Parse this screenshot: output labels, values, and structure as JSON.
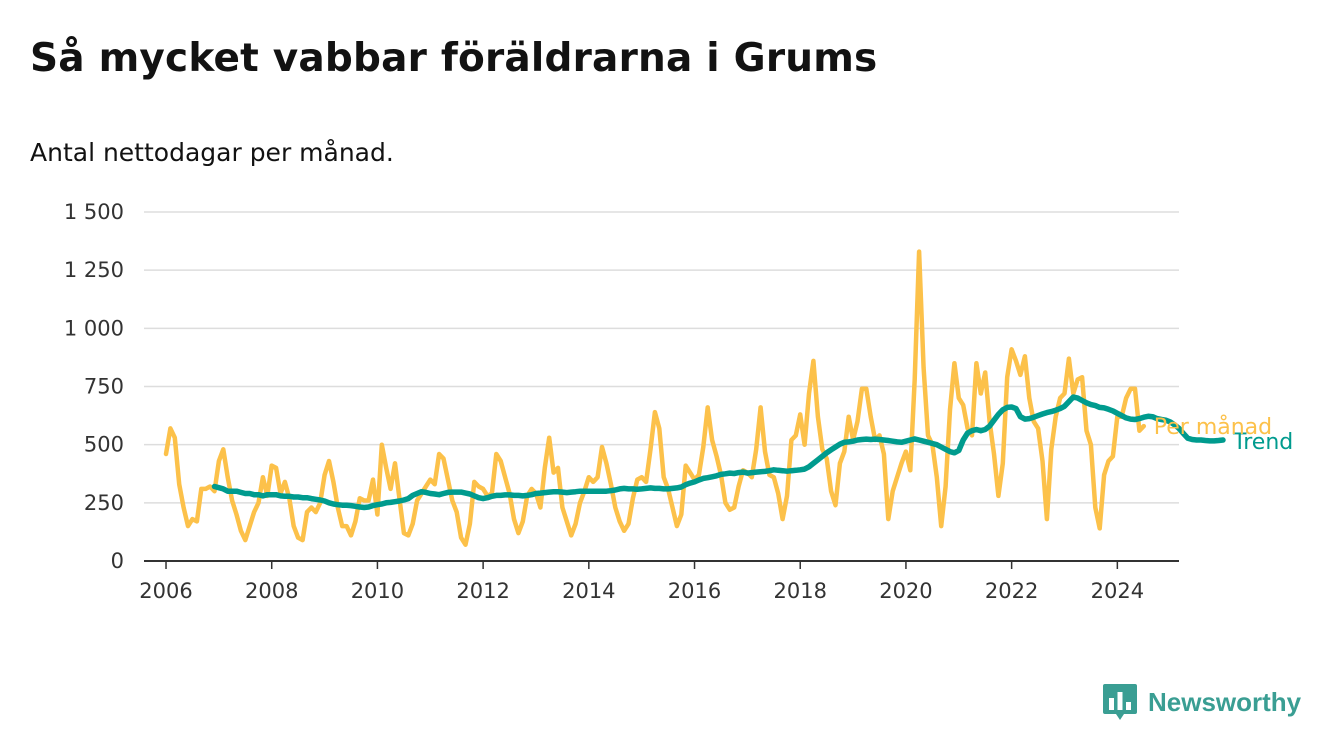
{
  "header": {
    "title": "Så mycket vabbar föräldrarna i Grums",
    "subtitle": "Antal nettodagar per månad."
  },
  "brand": {
    "name": "Newsworthy",
    "color": "#3a9e93"
  },
  "chart_data": {
    "type": "line",
    "title": "Så mycket vabbar föräldrarna i Grums",
    "subtitle": "Antal nettodagar per månad.",
    "xlabel": "",
    "ylabel": "",
    "x_ticks": [
      "2006",
      "2008",
      "2010",
      "2012",
      "2014",
      "2016",
      "2018",
      "2020",
      "2022",
      "2024"
    ],
    "y_ticks": [
      {
        "value": 0,
        "label": "0"
      },
      {
        "value": 250,
        "label": "250"
      },
      {
        "value": 500,
        "label": "500"
      },
      {
        "value": 750,
        "label": "750"
      },
      {
        "value": 1000,
        "label": "1 000"
      },
      {
        "value": 1250,
        "label": "1 250"
      },
      {
        "value": 1500,
        "label": "1 500"
      }
    ],
    "ylim": [
      0,
      1500
    ],
    "xlim": [
      "2005-08",
      "2025-03"
    ],
    "grid": "horizontal",
    "series": [
      {
        "name": "Per månad",
        "color": "#fcc14a",
        "start": "2006-01",
        "values": [
          460,
          570,
          530,
          330,
          230,
          150,
          180,
          170,
          310,
          310,
          320,
          300,
          430,
          480,
          360,
          260,
          200,
          130,
          90,
          150,
          210,
          250,
          360,
          280,
          410,
          400,
          290,
          340,
          270,
          150,
          100,
          90,
          210,
          230,
          210,
          250,
          370,
          430,
          340,
          230,
          150,
          150,
          110,
          170,
          270,
          260,
          260,
          350,
          200,
          500,
          400,
          310,
          420,
          270,
          120,
          110,
          160,
          260,
          290,
          320,
          350,
          330,
          460,
          440,
          350,
          260,
          210,
          100,
          70,
          160,
          340,
          320,
          310,
          280,
          290,
          460,
          430,
          360,
          290,
          180,
          120,
          170,
          280,
          310,
          290,
          230,
          400,
          530,
          380,
          400,
          230,
          170,
          110,
          160,
          250,
          300,
          360,
          340,
          360,
          490,
          420,
          330,
          230,
          170,
          130,
          160,
          270,
          350,
          360,
          340,
          480,
          640,
          570,
          360,
          310,
          230,
          150,
          200,
          410,
          380,
          350,
          370,
          490,
          660,
          520,
          450,
          370,
          250,
          220,
          230,
          320,
          390,
          380,
          360,
          480,
          660,
          470,
          370,
          360,
          290,
          180,
          280,
          520,
          540,
          630,
          500,
          720,
          860,
          620,
          480,
          440,
          300,
          240,
          420,
          470,
          620,
          520,
          600,
          740,
          740,
          620,
          520,
          540,
          460,
          180,
          300,
          360,
          420,
          470,
          390,
          780,
          1330,
          830,
          540,
          500,
          360,
          150,
          320,
          650,
          850,
          700,
          670,
          570,
          540,
          850,
          720,
          810,
          600,
          460,
          280,
          420,
          790,
          910,
          860,
          800,
          880,
          700,
          600,
          570,
          430,
          180,
          480,
          620,
          700,
          720,
          870,
          720,
          780,
          790,
          560,
          500,
          230,
          140,
          370,
          430,
          450,
          620,
          620,
          700,
          740,
          740,
          560,
          580
        ]
      },
      {
        "name": "Trend",
        "color": "#009b8e",
        "start": "2006-12",
        "values": [
          320,
          315,
          310,
          300,
          300,
          300,
          295,
          290,
          290,
          285,
          285,
          280,
          285,
          285,
          285,
          280,
          278,
          278,
          275,
          275,
          272,
          272,
          268,
          265,
          262,
          258,
          250,
          245,
          242,
          240,
          240,
          238,
          235,
          232,
          230,
          232,
          238,
          242,
          245,
          250,
          252,
          255,
          258,
          262,
          268,
          282,
          290,
          298,
          295,
          290,
          288,
          285,
          290,
          295,
          296,
          296,
          296,
          292,
          288,
          280,
          272,
          268,
          272,
          278,
          282,
          282,
          284,
          284,
          282,
          282,
          280,
          282,
          285,
          290,
          292,
          294,
          296,
          298,
          298,
          296,
          294,
          296,
          298,
          300,
          300,
          300,
          300,
          300,
          300,
          300,
          302,
          305,
          310,
          312,
          310,
          310,
          308,
          310,
          312,
          314,
          312,
          312,
          310,
          310,
          312,
          314,
          318,
          328,
          335,
          340,
          348,
          355,
          358,
          362,
          366,
          372,
          375,
          378,
          376,
          380,
          382,
          378,
          380,
          382,
          384,
          385,
          388,
          392,
          390,
          388,
          386,
          388,
          390,
          392,
          395,
          405,
          420,
          435,
          450,
          465,
          478,
          490,
          502,
          510,
          512,
          515,
          520,
          522,
          524,
          522,
          524,
          522,
          520,
          518,
          515,
          512,
          510,
          515,
          520,
          525,
          520,
          515,
          510,
          505,
          500,
          490,
          480,
          470,
          465,
          475,
          520,
          550,
          560,
          565,
          560,
          565,
          580,
          605,
          630,
          650,
          660,
          662,
          655,
          620,
          610,
          612,
          618,
          625,
          632,
          638,
          642,
          648,
          655,
          665,
          685,
          705,
          700,
          690,
          680,
          672,
          668,
          660,
          658,
          652,
          645,
          635,
          625,
          615,
          610,
          608,
          612,
          618,
          622,
          620,
          612,
          608,
          605,
          598,
          585,
          570,
          548,
          528,
          522,
          520,
          520,
          518,
          516,
          516,
          518,
          520
        ]
      }
    ]
  }
}
